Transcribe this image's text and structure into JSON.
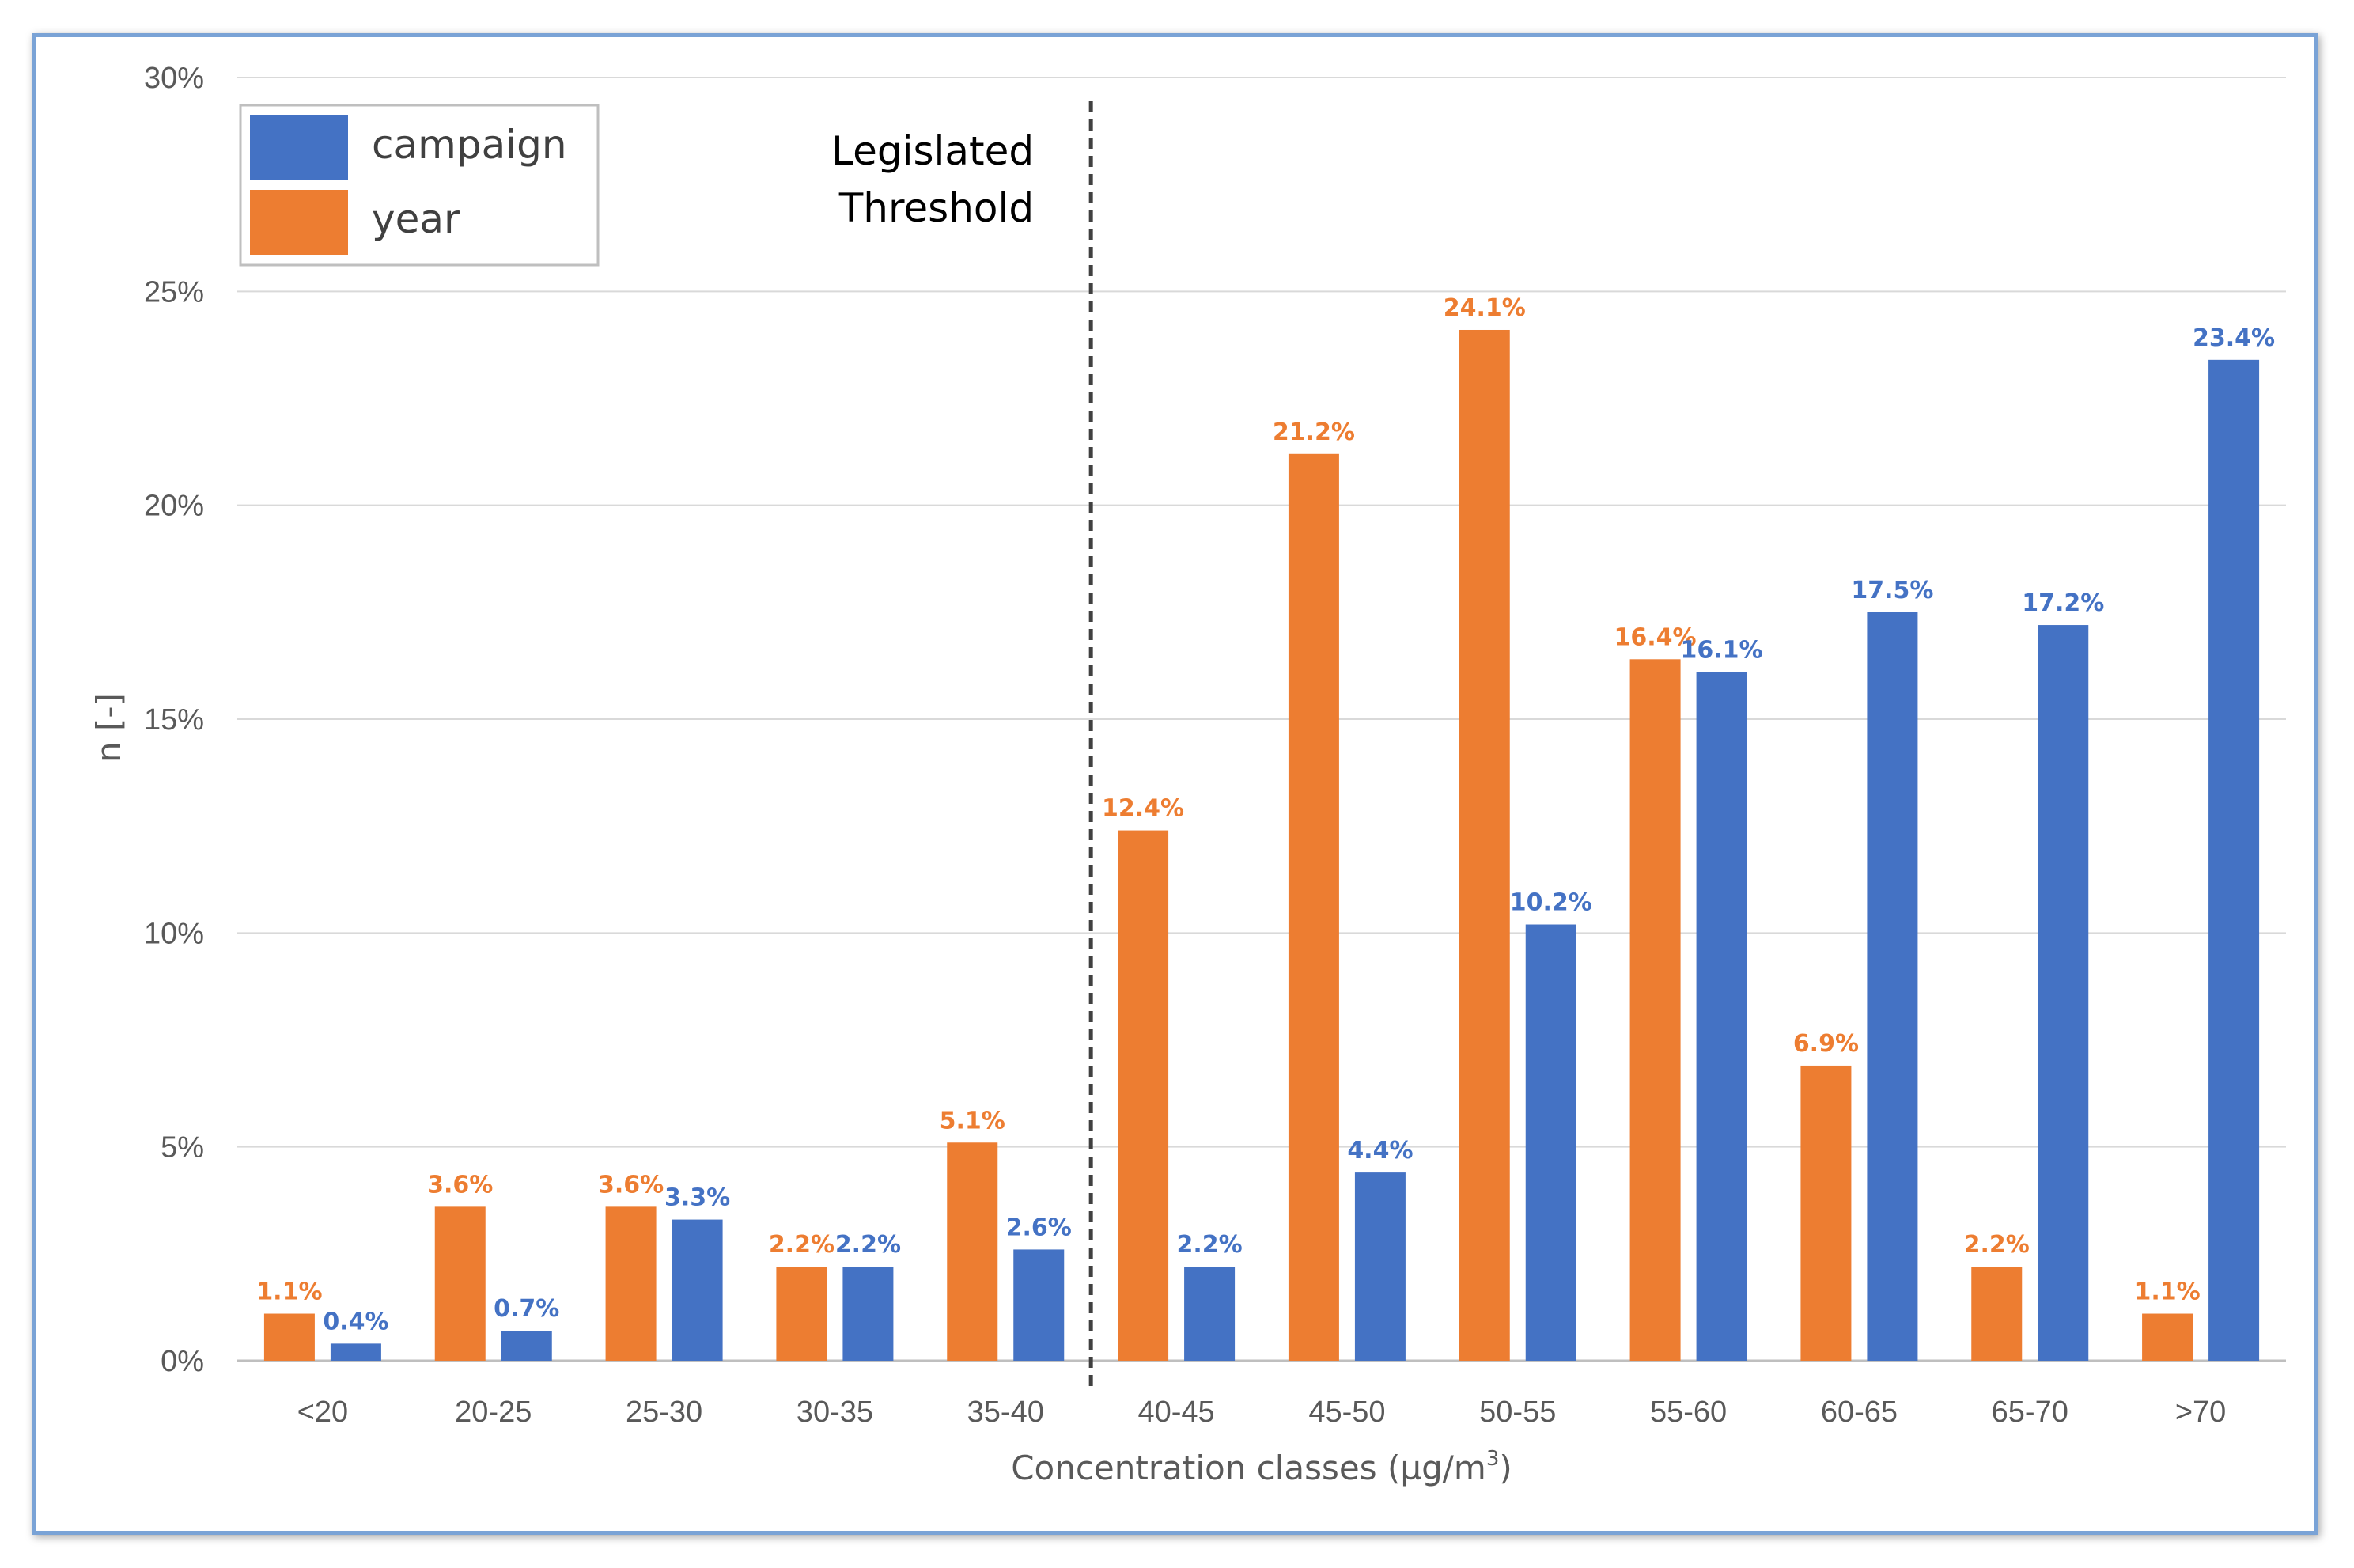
{
  "chart_data": {
    "type": "bar",
    "title": "",
    "xlabel": "Concentration classes (µg/m",
    "xlabel_superscript": "3",
    "xlabel_suffix": ")",
    "ylabel": "n [-]",
    "ylim": [
      0,
      30
    ],
    "yticks": [
      "0%",
      "5%",
      "10%",
      "15%",
      "20%",
      "25%",
      "30%"
    ],
    "ytick_values": [
      0,
      5,
      10,
      15,
      20,
      25,
      30
    ],
    "grid": true,
    "legend_position": "top-left",
    "categories": [
      "<20",
      "20-25",
      "25-30",
      "30-35",
      "35-40",
      "40-45",
      "45-50",
      "50-55",
      "55-60",
      "60-65",
      "65-70",
      ">70"
    ],
    "series": [
      {
        "name": "year",
        "color": "#ed7d31",
        "values": [
          1.1,
          3.6,
          3.6,
          2.2,
          5.1,
          12.4,
          21.2,
          24.1,
          16.4,
          6.9,
          2.2,
          1.1
        ],
        "labels": [
          "1.1%",
          "3.6%",
          "3.6%",
          "2.2%",
          "5.1%",
          "12.4%",
          "21.2%",
          "24.1%",
          "16.4%",
          "6.9%",
          "2.2%",
          "1.1%"
        ]
      },
      {
        "name": "campaign",
        "color": "#4472c4",
        "values": [
          0.4,
          0.7,
          3.3,
          2.2,
          2.6,
          2.2,
          4.4,
          10.2,
          16.1,
          17.5,
          17.2,
          23.4
        ],
        "labels": [
          "0.4%",
          "0.7%",
          "3.3%",
          "2.2%",
          "2.6%",
          "2.2%",
          "4.4%",
          "10.2%",
          "16.1%",
          "17.5%",
          "17.2%",
          "23.4%"
        ]
      }
    ],
    "legend": [
      {
        "name": "campaign",
        "color": "#4472c4"
      },
      {
        "name": "year",
        "color": "#ed7d31"
      }
    ],
    "annotation": {
      "lines": [
        "Legislated",
        "Threshold"
      ],
      "between_categories": [
        "35-40",
        "40-45"
      ]
    }
  }
}
